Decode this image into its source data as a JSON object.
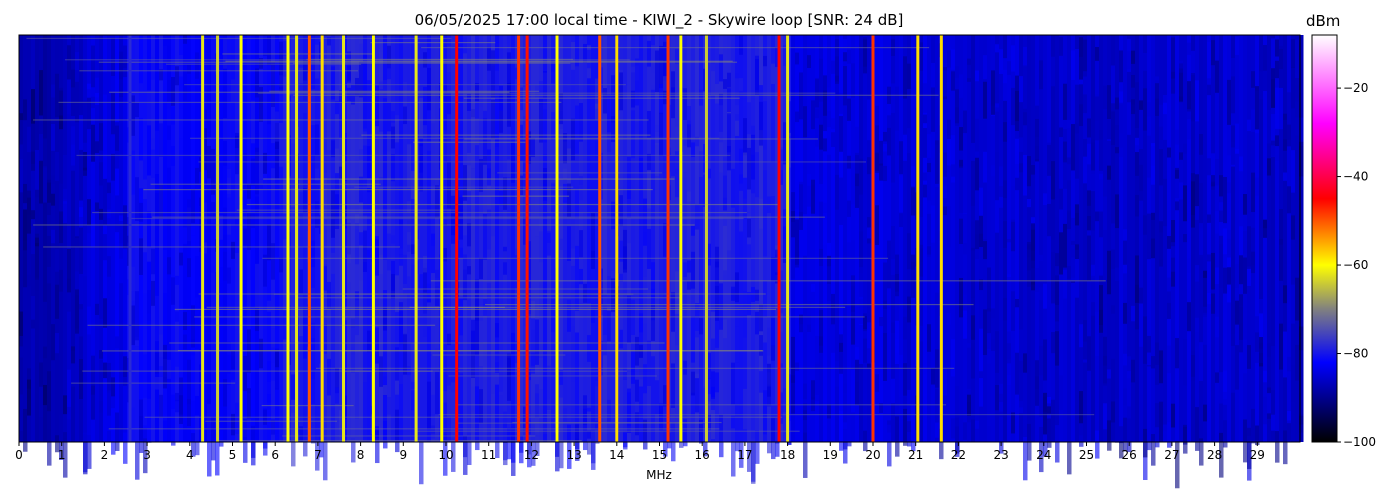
{
  "chart_data": {
    "type": "heatmap",
    "title": "06/05/2025 17:00 local time - KIWI_2 - Skywire loop [SNR: 24 dB]",
    "xlabel": "MHz",
    "ylabel": "",
    "xlim": [
      0,
      30
    ],
    "x_ticks": [
      0,
      1,
      2,
      3,
      4,
      5,
      6,
      7,
      8,
      9,
      10,
      11,
      12,
      13,
      14,
      15,
      16,
      17,
      18,
      19,
      20,
      21,
      22,
      23,
      24,
      25,
      26,
      27,
      28,
      29
    ],
    "colorbar": {
      "label": "dBm",
      "range": [
        -100,
        -8
      ],
      "ticks": [
        -100,
        -80,
        -60,
        -40,
        -20
      ],
      "tick_labels": [
        "−100",
        "−80",
        "−60",
        "−40",
        "−20"
      ],
      "colormap": [
        "#000000",
        "#0000ff",
        "#808080",
        "#ffff00",
        "#ff0000",
        "#ff00ff",
        "#ffffff"
      ]
    },
    "grid": false,
    "signals": [
      {
        "mhz": 2.6,
        "dbm": -78
      },
      {
        "mhz": 4.3,
        "dbm": -62
      },
      {
        "mhz": 4.65,
        "dbm": -64
      },
      {
        "mhz": 5.2,
        "dbm": -60
      },
      {
        "mhz": 6.3,
        "dbm": -60
      },
      {
        "mhz": 6.5,
        "dbm": -62
      },
      {
        "mhz": 6.8,
        "dbm": -50
      },
      {
        "mhz": 7.1,
        "dbm": -58
      },
      {
        "mhz": 7.6,
        "dbm": -62
      },
      {
        "mhz": 8.3,
        "dbm": -60
      },
      {
        "mhz": 9.3,
        "dbm": -62
      },
      {
        "mhz": 9.9,
        "dbm": -60
      },
      {
        "mhz": 10.25,
        "dbm": -45
      },
      {
        "mhz": 11.7,
        "dbm": -48
      },
      {
        "mhz": 11.9,
        "dbm": -46
      },
      {
        "mhz": 12.6,
        "dbm": -60
      },
      {
        "mhz": 13.6,
        "dbm": -50
      },
      {
        "mhz": 14.0,
        "dbm": -58
      },
      {
        "mhz": 15.2,
        "dbm": -48
      },
      {
        "mhz": 15.5,
        "dbm": -60
      },
      {
        "mhz": 16.1,
        "dbm": -64
      },
      {
        "mhz": 17.8,
        "dbm": -45
      },
      {
        "mhz": 18.0,
        "dbm": -62
      },
      {
        "mhz": 20.0,
        "dbm": -48
      },
      {
        "mhz": 21.05,
        "dbm": -58
      },
      {
        "mhz": 21.6,
        "dbm": -58
      }
    ]
  }
}
